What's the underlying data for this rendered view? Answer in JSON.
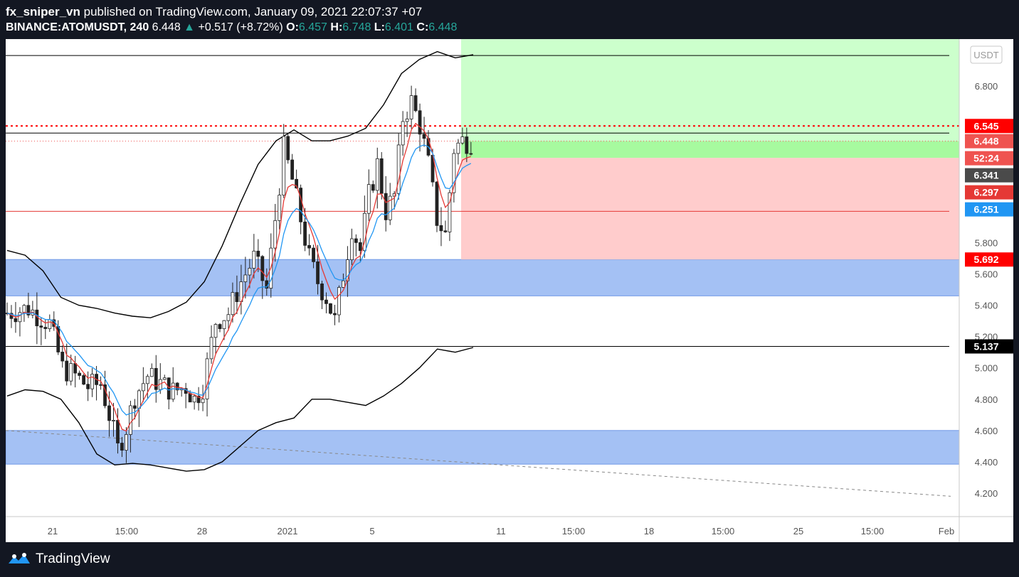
{
  "header": {
    "publisher": "fx_sniper_vn",
    "published_text": "published on TradingView.com, January 09, 2021 22:07:37 +07",
    "symbol": "BINANCE:ATOMUSDT, 240",
    "price": "6.448",
    "arrow": "▲",
    "change": "+0.517 (+8.72%)",
    "o_label": "O:",
    "o_val": "6.457",
    "h_label": "H:",
    "h_val": "6.748",
    "l_label": "L:",
    "l_val": "6.401",
    "c_label": "C:",
    "c_val": "6.448"
  },
  "footer": {
    "brand": "TradingView",
    "icon": "tradingview-logo-icon"
  },
  "colors": {
    "up": "#26a69a",
    "down": "#ef5350",
    "ema_fast": "#e53935",
    "ema_slow": "#2196f3",
    "zone": "#a4c1f4",
    "profit": "#ccffcc",
    "profit_strong": "#a7fa9f",
    "loss": "#ffcccc"
  },
  "chart_data": {
    "type": "candlestick",
    "currency_label": "USDT",
    "y_range": [
      4.05,
      7.1
    ],
    "y_ticks": [
      "4.200",
      "4.400",
      "4.600",
      "4.800",
      "5.000",
      "5.200",
      "5.400",
      "5.600",
      "5.800",
      "6.800"
    ],
    "x_ticks": [
      "21",
      "15:00",
      "28",
      "2021",
      "5",
      "11",
      "15:00",
      "18",
      "15:00",
      "25",
      "15:00",
      "Feb"
    ],
    "price_labels": [
      {
        "value": 6.545,
        "text": "6.545",
        "color": "#ff0000"
      },
      {
        "value": 6.448,
        "text": "6.448",
        "color": "#ef5350"
      },
      {
        "value": 6.335,
        "text": "52:24",
        "color": "#ef5350"
      },
      {
        "value": 6.341,
        "text": "6.341",
        "color": "#4a4a4a"
      },
      {
        "value": 6.297,
        "text": "6.297",
        "color": "#e53935"
      },
      {
        "value": 6.251,
        "text": "6.251",
        "color": "#2196f3"
      },
      {
        "value": 5.692,
        "text": "5.692",
        "color": "#ff0000"
      },
      {
        "value": 5.137,
        "text": "5.137",
        "color": "#000000"
      }
    ],
    "horizontal_lines": [
      {
        "value": 6.995,
        "color": "#000000"
      },
      {
        "value": 6.5,
        "color": "#000000"
      },
      {
        "value": 6.0,
        "color": "#e53935"
      },
      {
        "value": 5.137,
        "color": "#000000"
      }
    ],
    "dotted_lines": [
      {
        "value": 6.545,
        "color": "#ff0000"
      },
      {
        "value": 6.448,
        "color": "#ef5350"
      }
    ],
    "zones": [
      {
        "low": 5.46,
        "high": 5.692
      },
      {
        "low": 4.385,
        "high": 4.6
      }
    ],
    "position": {
      "entry": 6.341,
      "target": 7.1,
      "stop": 5.692,
      "strong_top": 6.448
    },
    "trendline": {
      "from": 4.6,
      "to": 4.18
    },
    "candles_count": 110,
    "bollinger_upper_sample": [
      5.75,
      5.72,
      5.62,
      5.45,
      5.4,
      5.38,
      5.35,
      5.33,
      5.32,
      5.36,
      5.42,
      5.55,
      5.78,
      6.05,
      6.3,
      6.45,
      6.52,
      6.45,
      6.45,
      6.48,
      6.53,
      6.68,
      6.88,
      6.97,
      7.02,
      6.98,
      7.0
    ],
    "bollinger_lower_sample": [
      4.82,
      4.86,
      4.85,
      4.8,
      4.65,
      4.45,
      4.38,
      4.39,
      4.38,
      4.36,
      4.34,
      4.35,
      4.4,
      4.5,
      4.6,
      4.65,
      4.68,
      4.8,
      4.8,
      4.78,
      4.76,
      4.82,
      4.9,
      5.0,
      5.12,
      5.1,
      5.13
    ]
  }
}
